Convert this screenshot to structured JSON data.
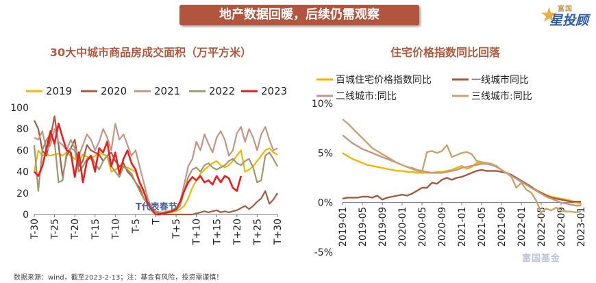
{
  "header": {
    "banner": "地产数据回暖，后续仍需观察"
  },
  "logo": {
    "top_text": "富国",
    "main_text": "星投顾",
    "icon": "star-icon"
  },
  "source_note": "数据来源：wind，截至2023-2-13；注：基金有风险，投资需谨慎！",
  "watermark": "富国基金",
  "colors": {
    "banner": "#b2553f",
    "title": "#b25a3f",
    "logo_blue": "#2a5aa8",
    "logo_gold": "#e6b04a"
  },
  "chart_data": [
    {
      "type": "line",
      "title": "30大中城市商品房成交面积（万平方米）",
      "xlabel": "",
      "ylabel": "",
      "x": [
        -30,
        -29,
        -28,
        -27,
        -26,
        -25,
        -24,
        -23,
        -22,
        -21,
        -20,
        -19,
        -18,
        -17,
        -16,
        -15,
        -14,
        -13,
        -12,
        -11,
        -10,
        -9,
        -8,
        -7,
        -6,
        -5,
        -4,
        -3,
        -2,
        -1,
        0,
        1,
        2,
        3,
        4,
        5,
        6,
        7,
        8,
        9,
        10,
        11,
        12,
        13,
        14,
        15,
        16,
        17,
        18,
        19,
        20,
        21,
        22,
        23,
        24,
        25,
        26,
        27,
        28,
        29,
        30
      ],
      "x_tick_labels": [
        "T-30",
        "T-25",
        "T-20",
        "T-15",
        "T-10",
        "T-5",
        "T",
        "T+5",
        "T+10",
        "T+15",
        "T+20",
        "T+25",
        "T+30"
      ],
      "x_tick_values": [
        -30,
        -25,
        -20,
        -15,
        -10,
        -5,
        0,
        5,
        10,
        15,
        20,
        25,
        30
      ],
      "y_ticks": [
        0,
        20,
        40,
        60,
        80,
        100
      ],
      "ylim": [
        0,
        100
      ],
      "annotation": "T代表春节",
      "legend_position": "top",
      "series": [
        {
          "name": "2019",
          "color": "#f2b600",
          "values": [
            40,
            60,
            55,
            56,
            55,
            56,
            57,
            55,
            58,
            55,
            52,
            50,
            56,
            54,
            52,
            55,
            58,
            56,
            55,
            40,
            42,
            44,
            45,
            44,
            42,
            40,
            30,
            20,
            15,
            6,
            2,
            2,
            1,
            2,
            2,
            3,
            5,
            8,
            15,
            25,
            32,
            38,
            42,
            45,
            48,
            50,
            46,
            44,
            46,
            50,
            55,
            60,
            40,
            42,
            45,
            50,
            55,
            60,
            62,
            58,
            56
          ]
        },
        {
          "name": "2020",
          "color": "#a5593f",
          "values": [
            88,
            80,
            60,
            55,
            72,
            92,
            65,
            35,
            55,
            62,
            70,
            45,
            50,
            65,
            60,
            58,
            56,
            50,
            55,
            58,
            50,
            45,
            48,
            40,
            36,
            30,
            25,
            15,
            10,
            4,
            2,
            1,
            0,
            0,
            0,
            0,
            0,
            0,
            0,
            0,
            1,
            2,
            3,
            2,
            3,
            4,
            2,
            3,
            2,
            3,
            4,
            6,
            8,
            5,
            8,
            12,
            15,
            22,
            10,
            14,
            20
          ]
        },
        {
          "name": "2021",
          "color": "#c49585",
          "values": [
            72,
            70,
            78,
            60,
            65,
            80,
            68,
            65,
            60,
            70,
            62,
            55,
            65,
            75,
            70,
            60,
            68,
            80,
            72,
            60,
            85,
            70,
            75,
            65,
            55,
            60,
            45,
            30,
            15,
            6,
            3,
            2,
            2,
            3,
            4,
            5,
            12,
            28,
            45,
            52,
            68,
            60,
            75,
            66,
            58,
            72,
            78,
            70,
            55,
            60,
            76,
            82,
            68,
            80,
            72,
            60,
            75,
            82,
            70,
            60,
            62
          ]
        },
        {
          "name": "2022",
          "color": "#9a9a6e",
          "values": [
            65,
            22,
            60,
            70,
            75,
            68,
            30,
            32,
            58,
            62,
            60,
            40,
            45,
            52,
            55,
            48,
            42,
            50,
            55,
            45,
            40,
            35,
            45,
            42,
            38,
            30,
            22,
            15,
            10,
            5,
            2,
            2,
            2,
            3,
            3,
            4,
            8,
            22,
            35,
            42,
            44,
            40,
            46,
            48,
            44,
            42,
            44,
            46,
            50,
            52,
            48,
            46,
            50,
            52,
            44,
            30,
            32,
            55,
            58,
            52,
            45
          ]
        },
        {
          "name": "2023",
          "color": "#ee1c1c",
          "values": [
            40,
            36,
            45,
            62,
            78,
            66,
            85,
            72,
            60,
            58,
            35,
            58,
            30,
            50,
            55,
            40,
            62,
            58,
            68,
            45,
            58,
            38,
            52,
            60,
            48,
            42,
            30,
            22,
            10,
            4,
            0,
            0,
            1,
            2,
            3,
            5,
            12,
            22,
            30,
            35,
            32,
            36,
            30,
            32,
            28,
            36,
            30,
            36,
            34,
            25,
            22,
            36,
            null,
            null,
            null,
            null,
            null,
            null,
            null,
            null,
            null
          ]
        }
      ]
    },
    {
      "type": "line",
      "title": "住宅价格指数同比回落",
      "xlabel": "",
      "ylabel": "",
      "x": [
        "2019-01",
        "2019-02",
        "2019-03",
        "2019-04",
        "2019-05",
        "2019-06",
        "2019-07",
        "2019-08",
        "2019-09",
        "2019-10",
        "2019-11",
        "2019-12",
        "2020-01",
        "2020-02",
        "2020-03",
        "2020-04",
        "2020-05",
        "2020-06",
        "2020-07",
        "2020-08",
        "2020-09",
        "2020-10",
        "2020-11",
        "2020-12",
        "2021-01",
        "2021-02",
        "2021-03",
        "2021-04",
        "2021-05",
        "2021-06",
        "2021-07",
        "2021-08",
        "2021-09",
        "2021-10",
        "2021-11",
        "2021-12",
        "2022-01",
        "2022-02",
        "2022-03",
        "2022-04",
        "2022-05",
        "2022-06",
        "2022-07",
        "2022-08",
        "2022-09",
        "2022-10",
        "2022-11",
        "2022-12",
        "2023-01"
      ],
      "x_tick_labels": [
        "2019-01",
        "2019-05",
        "2019-09",
        "2020-01",
        "2020-05",
        "2020-09",
        "2021-01",
        "2021-05",
        "2021-09",
        "2022-01",
        "2022-05",
        "2022-09",
        "2023-01"
      ],
      "y_ticks": [
        -5,
        0,
        5,
        10
      ],
      "y_tick_labels": [
        "-5%",
        "0%",
        "5%",
        "10%"
      ],
      "ylim": [
        -5,
        10
      ],
      "legend_position": "top",
      "series": [
        {
          "name": "百城住宅价格指数同比",
          "color": "#f2b600",
          "values": [
            5.0,
            4.7,
            4.4,
            4.2,
            4.0,
            3.8,
            3.7,
            3.6,
            3.5,
            3.4,
            3.3,
            3.2,
            3.2,
            3.1,
            3.1,
            3.0,
            3.0,
            3.0,
            3.0,
            3.1,
            3.1,
            3.2,
            3.3,
            3.5,
            3.7,
            3.4,
            3.6,
            4.0,
            4.0,
            4.0,
            3.9,
            3.6,
            3.3,
            3.0,
            2.7,
            2.4,
            2.1,
            1.8,
            1.5,
            1.3,
            1.0,
            0.8,
            0.6,
            0.5,
            0.4,
            0.3,
            0.2,
            0.0,
            -0.1
          ]
        },
        {
          "name": "一线城市同比",
          "color": "#a5593f",
          "values": [
            0.4,
            0.5,
            0.5,
            0.5,
            0.6,
            0.6,
            0.5,
            0.7,
            0.3,
            0.5,
            0.6,
            0.7,
            0.8,
            0.7,
            0.9,
            1.2,
            1.5,
            1.5,
            2.0,
            1.9,
            2.3,
            2.5,
            2.3,
            2.5,
            2.6,
            2.8,
            3.0,
            3.2,
            3.3,
            3.2,
            3.2,
            3.2,
            3.1,
            3.0,
            2.8,
            2.5,
            2.2,
            1.9,
            1.6,
            1.2,
            1.0,
            0.7,
            0.5,
            0.4,
            0.3,
            0.2,
            0.1,
            0.1,
            0.1
          ]
        },
        {
          "name": "二线城市:同比",
          "color": "#c49585",
          "values": [
            6.8,
            6.4,
            6.0,
            5.7,
            5.4,
            5.2,
            5.0,
            4.8,
            4.6,
            4.4,
            4.2,
            4.0,
            3.8,
            3.6,
            3.5,
            3.3,
            3.2,
            3.1,
            3.0,
            3.0,
            3.0,
            3.1,
            3.2,
            3.3,
            3.5,
            3.6,
            3.7,
            3.8,
            3.9,
            3.9,
            3.8,
            3.6,
            3.3,
            3.0,
            2.7,
            2.4,
            2.1,
            1.8,
            1.5,
            1.2,
            0.9,
            0.6,
            0.4,
            0.2,
            0.0,
            -0.1,
            -0.2,
            -0.3,
            -0.3
          ]
        },
        {
          "name": "三线城市:同比",
          "color": "#c9a46a",
          "values": [
            8.4,
            8.0,
            7.5,
            7.0,
            6.5,
            6.0,
            5.5,
            5.2,
            4.9,
            4.6,
            4.3,
            4.0,
            3.8,
            3.6,
            3.4,
            3.2,
            3.1,
            5.1,
            5.2,
            5.0,
            5.2,
            5.8,
            4.6,
            4.8,
            5.0,
            5.1,
            4.9,
            4.2,
            4.1,
            4.0,
            3.9,
            3.7,
            3.3,
            3.0,
            2.6,
            1.5,
            2.0,
            1.3,
            1.0,
            0.2,
            -1.0,
            -0.6,
            -0.8,
            -0.5,
            -0.8,
            -0.9,
            -0.9,
            -1.0,
            -0.9
          ]
        }
      ]
    }
  ]
}
